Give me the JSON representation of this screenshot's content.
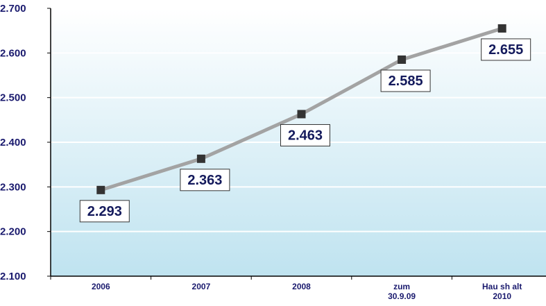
{
  "chart_data": {
    "type": "line",
    "categories": [
      [
        "2006"
      ],
      [
        "2007"
      ],
      [
        "2008"
      ],
      [
        "zum",
        "30.9.09"
      ],
      [
        "Hau sh alt",
        "2010"
      ]
    ],
    "values": [
      2293,
      2363,
      2463,
      2585,
      2655
    ],
    "data_labels": [
      "2.293",
      "2.363",
      "2.463",
      "2.585",
      "2.655"
    ],
    "y_ticks": [
      {
        "value": 2100,
        "label": "2.100"
      },
      {
        "value": 2200,
        "label": "2.200"
      },
      {
        "value": 2300,
        "label": "2.300"
      },
      {
        "value": 2400,
        "label": "2.400"
      },
      {
        "value": 2500,
        "label": "2.500"
      },
      {
        "value": 2600,
        "label": "2.600"
      },
      {
        "value": 2700,
        "label": "2.700"
      }
    ],
    "ylim": [
      2100,
      2700
    ],
    "grid": true,
    "colors": {
      "line": "#a3a3a3",
      "marker": "#333333",
      "label_text": "#141a5c",
      "tick_text": "#1a1a6e",
      "bg_top": "#ffffff",
      "bg_bottom": "#bfe3f0"
    }
  }
}
